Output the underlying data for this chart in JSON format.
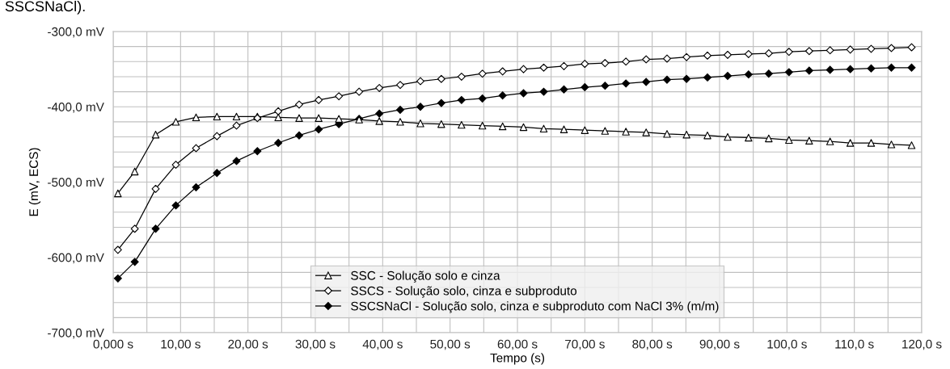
{
  "chart_data": {
    "type": "line",
    "xlabel": "Tempo (s)",
    "ylabel": "E (mV, ECS)",
    "annotations": [
      "SSCSNaCl)."
    ],
    "x": [
      0.7,
      3.2,
      6.3,
      9.3,
      12.3,
      15.4,
      18.3,
      21.4,
      24.5,
      27.6,
      30.5,
      33.5,
      36.5,
      39.5,
      42.6,
      45.6,
      48.7,
      51.7,
      54.8,
      57.8,
      60.9,
      63.9,
      66.9,
      70.0,
      73.0,
      76.1,
      79.1,
      82.2,
      85.1,
      88.2,
      91.2,
      94.3,
      97.3,
      100.3,
      103.3,
      106.4,
      109.4,
      112.5,
      115.5,
      118.5
    ],
    "series": [
      {
        "name": "SSC - Solução solo e cinza",
        "color": "#000000",
        "marker": "triangle",
        "colors": [
          "#ffffff",
          "#ffffff",
          "#ffffff",
          "#ffffff",
          "#ffffff",
          "#ffffff",
          "#ffffff",
          "#ffffff",
          "#ffffff",
          "#ffffff",
          "#ffffff",
          "#ffffff",
          "#ffffff",
          "#ffffff",
          "#ffffff",
          "#ffffff",
          "#ffffff",
          "#ffffff",
          "#ffffff",
          "#ffffff",
          "#ffffff",
          "#ffffff",
          "#ffffff",
          "#ffffff",
          "#ffffff",
          "#ffffff",
          "#ffffff",
          "#ffffff",
          "#ffffff",
          "#ffffff",
          "#ffffff",
          "#ffffff",
          "#ffffff",
          "#ffffff",
          "#ffffff",
          "#ffffff",
          "#ffffff",
          "#ffffff",
          "#ffffff",
          "#ffffff"
        ],
        "values": [
          -515,
          -486,
          -437,
          -420,
          -414,
          -413,
          -413,
          -413,
          -414,
          -415,
          -415,
          -416,
          -417,
          -419,
          -420,
          -422,
          -423,
          -424,
          -425,
          -426,
          -427,
          -429,
          -430,
          -431,
          -432,
          -433,
          -434,
          -436,
          -437,
          -438,
          -440,
          -441,
          -442,
          -444,
          -445,
          -446,
          -448,
          -448,
          -450,
          -451
        ]
      },
      {
        "name": "SSCS - Solução solo, cinza e subproduto",
        "color": "#000000",
        "marker": "diamond",
        "colors": [
          "#ffffff",
          "#ffffff",
          "#ffffff",
          "#ffffff",
          "#ffffff",
          "#ffffff",
          "#ffffff",
          "#ffffff",
          "#ffffff",
          "#ffffff",
          "#ffffff",
          "#ffffff",
          "#ffffff",
          "#ffffff",
          "#ffffff",
          "#ffffff",
          "#ffffff",
          "#ffffff",
          "#ffffff",
          "#ffffff",
          "#ffffff",
          "#ffffff",
          "#ffffff",
          "#ffffff",
          "#ffffff",
          "#ffffff",
          "#ffffff",
          "#ffffff",
          "#ffffff",
          "#ffffff",
          "#ffffff",
          "#ffffff",
          "#ffffff",
          "#ffffff",
          "#ffffff",
          "#ffffff",
          "#ffffff",
          "#ffffff",
          "#ffffff",
          "#ffffff"
        ],
        "values": [
          -590,
          -562,
          -509,
          -477,
          -455,
          -439,
          -425,
          -415,
          -406,
          -397,
          -391,
          -386,
          -380,
          -375,
          -371,
          -366,
          -363,
          -360,
          -356,
          -353,
          -350,
          -348,
          -346,
          -343,
          -342,
          -340,
          -337,
          -336,
          -334,
          -332,
          -331,
          -330,
          -329,
          -327,
          -326,
          -325,
          -324,
          -323,
          -322,
          -321
        ]
      },
      {
        "name": "SSCSNaCl - Solução solo, cinza e subproduto com NaCl 3% (m/m)",
        "color": "#000000",
        "marker": "diamond",
        "values": [
          -628,
          -606,
          -562,
          -531,
          -507,
          -488,
          -472,
          -459,
          -448,
          -438,
          -430,
          -423,
          -416,
          -409,
          -404,
          -400,
          -395,
          -391,
          -389,
          -385,
          -382,
          -380,
          -377,
          -374,
          -372,
          -369,
          -367,
          -364,
          -363,
          -361,
          -359,
          -357,
          -356,
          -354,
          -352,
          -351,
          -350,
          -349,
          -348,
          -348
        ]
      }
    ],
    "xlim": [
      0,
      120
    ],
    "xticks": [
      {
        "value": 0,
        "label": "0,000 s"
      },
      {
        "value": 5,
        "label": null
      },
      {
        "value": 10,
        "label": "10,00 s"
      },
      {
        "value": 15,
        "label": null
      },
      {
        "value": 20,
        "label": "20,00 s"
      },
      {
        "value": 25,
        "label": null
      },
      {
        "value": 30,
        "label": "30,00 s"
      },
      {
        "value": 35,
        "label": null
      },
      {
        "value": 40,
        "label": "40,00 s"
      },
      {
        "value": 45,
        "label": null
      },
      {
        "value": 50,
        "label": "50,00 s"
      },
      {
        "value": 55,
        "label": null
      },
      {
        "value": 60,
        "label": "60,00 s"
      },
      {
        "value": 65,
        "label": null
      },
      {
        "value": 70,
        "label": "70,00 s"
      },
      {
        "value": 75,
        "label": null
      },
      {
        "value": 80,
        "label": "80,00 s"
      },
      {
        "value": 85,
        "label": null
      },
      {
        "value": 90,
        "label": "90,00 s"
      },
      {
        "value": 95,
        "label": null
      },
      {
        "value": 100,
        "label": "100,0 s"
      },
      {
        "value": 105,
        "label": null
      },
      {
        "value": 110,
        "label": "110,0 s"
      },
      {
        "value": 115,
        "label": null
      },
      {
        "value": 120,
        "label": "120,0 s"
      }
    ],
    "ylim": [
      -700,
      -300
    ],
    "yticks": [
      {
        "value": -700,
        "label": "-700,0 mV"
      },
      {
        "value": -680,
        "label": null
      },
      {
        "value": -660,
        "label": null
      },
      {
        "value": -640,
        "label": null
      },
      {
        "value": -620,
        "label": null
      },
      {
        "value": -600,
        "label": "-600,0 mV"
      },
      {
        "value": -580,
        "label": null
      },
      {
        "value": -560,
        "label": null
      },
      {
        "value": -540,
        "label": null
      },
      {
        "value": -520,
        "label": null
      },
      {
        "value": -500,
        "label": "-500,0 mV"
      },
      {
        "value": -480,
        "label": null
      },
      {
        "value": -460,
        "label": null
      },
      {
        "value": -440,
        "label": null
      },
      {
        "value": -420,
        "label": null
      },
      {
        "value": -400,
        "label": "-400,0 mV"
      },
      {
        "value": -380,
        "label": null
      },
      {
        "value": -360,
        "label": null
      },
      {
        "value": -340,
        "label": null
      },
      {
        "value": -320,
        "label": null
      },
      {
        "value": -300,
        "label": "-300,0 mV"
      }
    ],
    "grid": true,
    "legend": "bottom",
    "line_style": "solid"
  }
}
